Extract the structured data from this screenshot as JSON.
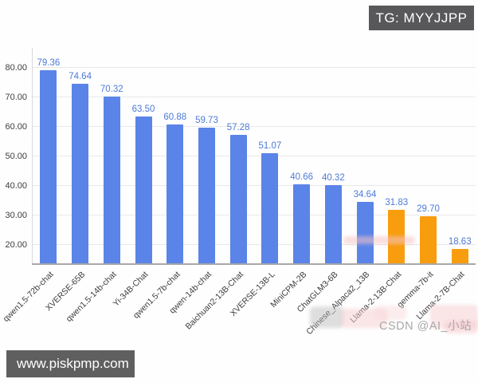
{
  "badges": {
    "tg": "TG: MYYJJPP",
    "site": "www.piskpmp.com",
    "watermark": "CSDN @AI_小站"
  },
  "chart_data": {
    "type": "bar",
    "title": "",
    "xlabel": "",
    "ylabel": "",
    "categories": [
      "qwen1.5-72b-chat",
      "XVERSE-65B",
      "qwen1.5-14b-chat",
      "Yi-34B-Chat",
      "qwen1.5-7b-chat",
      "qwen-14b-chat",
      "Baichuan2-13B-Chat",
      "XVERSE-13B-L",
      "MiniCPM-2B",
      "ChatGLM3-6B",
      "Chinese_Alpaca2_13B",
      "Llama-2-13B-Chat",
      "gemma-7b-it",
      "Llama-2-7B-Chat"
    ],
    "values": [
      79.36,
      74.64,
      70.32,
      63.5,
      60.88,
      59.73,
      57.28,
      51.07,
      40.66,
      40.32,
      34.64,
      31.83,
      29.7,
      18.63
    ],
    "value_labels": [
      "79.36",
      "74.64",
      "70.32",
      "63.50",
      "60.88",
      "59.73",
      "57.28",
      "51.07",
      "40.66",
      "40.32",
      "34.64",
      "31.83",
      "29.70",
      "18.63"
    ],
    "highlight_indices": [
      11,
      12,
      13
    ],
    "y_ticks": [
      20,
      30,
      40,
      50,
      60,
      70,
      80
    ],
    "y_tick_labels": [
      "20.00",
      "30.00",
      "40.00",
      "50.00",
      "60.00",
      "70.00",
      "80.00"
    ],
    "ylim": [
      13.78,
      86.8
    ],
    "grid": true,
    "legend": null,
    "colors": {
      "bar": "#5B84E8",
      "bar_highlight": "#F89D0E",
      "value_label": "#4D7BD8",
      "axis_label": "#3D3D3D",
      "grid_line": "#E9E9E9",
      "x_axis_line": "#A8A8A8",
      "y_axis_line": "#D8D8D8"
    }
  }
}
